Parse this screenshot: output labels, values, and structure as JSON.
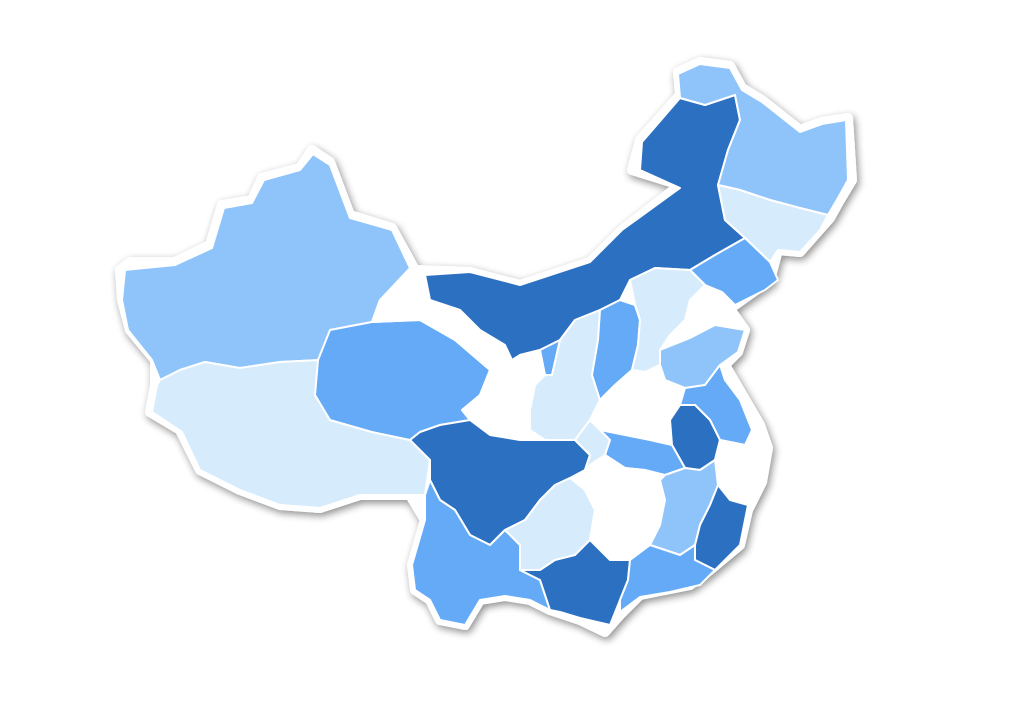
{
  "map": {
    "palette": {
      "lightest": "#d6ecfd",
      "light": "#8fc4fb",
      "medium": "#64aaf7",
      "dark": "#2c70c2",
      "blank": "#ffffff",
      "outline": "#ffffff",
      "shadow": "#8a8a8a"
    },
    "regions": [
      {
        "id": "xinjiang",
        "tier": "light"
      },
      {
        "id": "tibet",
        "tier": "lightest"
      },
      {
        "id": "qinghai",
        "tier": "medium"
      },
      {
        "id": "gansu",
        "tier": "blank"
      },
      {
        "id": "inner-mongolia",
        "tier": "dark"
      },
      {
        "id": "heilongjiang",
        "tier": "light"
      },
      {
        "id": "jilin",
        "tier": "lightest"
      },
      {
        "id": "liaoning",
        "tier": "medium"
      },
      {
        "id": "ningxia",
        "tier": "medium"
      },
      {
        "id": "shaanxi",
        "tier": "lightest"
      },
      {
        "id": "shanxi",
        "tier": "medium"
      },
      {
        "id": "hebei",
        "tier": "lightest"
      },
      {
        "id": "shandong",
        "tier": "light"
      },
      {
        "id": "henan",
        "tier": "blank"
      },
      {
        "id": "jiangsu",
        "tier": "medium"
      },
      {
        "id": "anhui",
        "tier": "dark"
      },
      {
        "id": "sichuan",
        "tier": "dark"
      },
      {
        "id": "chongqing",
        "tier": "lightest"
      },
      {
        "id": "hubei",
        "tier": "medium"
      },
      {
        "id": "zhejiang",
        "tier": "blank"
      },
      {
        "id": "yunnan",
        "tier": "medium"
      },
      {
        "id": "guizhou",
        "tier": "lightest"
      },
      {
        "id": "hunan",
        "tier": "blank"
      },
      {
        "id": "jiangxi",
        "tier": "light"
      },
      {
        "id": "fujian",
        "tier": "dark"
      },
      {
        "id": "guangxi",
        "tier": "dark"
      },
      {
        "id": "guangdong",
        "tier": "medium"
      }
    ]
  }
}
